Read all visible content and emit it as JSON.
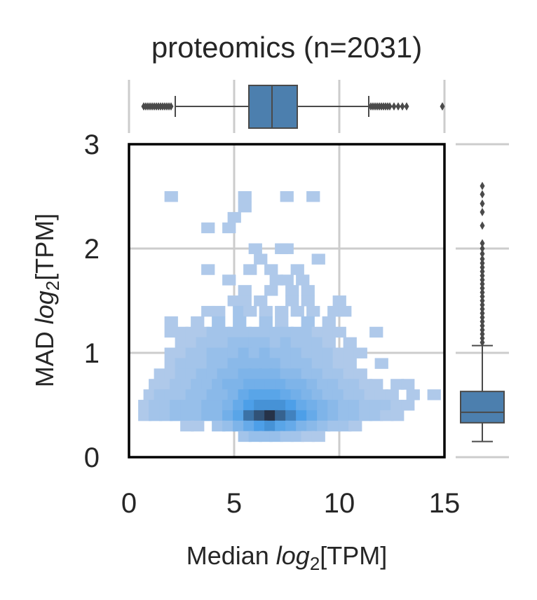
{
  "chart_data": {
    "type": "heatmap",
    "variant": "2d-histogram joint plot with marginal boxplots",
    "title": "proteomics (n=2031)",
    "xlabel": {
      "prefix": "Median ",
      "log": "log",
      "sub": "2",
      "suffix": "[TPM]"
    },
    "ylabel": {
      "prefix": "MAD ",
      "log": "log",
      "sub": "2",
      "suffix": "[TPM]"
    },
    "xlim": [
      0,
      15
    ],
    "ylim": [
      0,
      3
    ],
    "xticks": [
      "0",
      "5",
      "10",
      "15"
    ],
    "yticks": [
      "0",
      "1",
      "2",
      "3"
    ],
    "xtick_values": [
      0,
      5,
      10,
      15
    ],
    "ytick_values": [
      0,
      1,
      2,
      3
    ],
    "grid": true,
    "bin_width": {
      "x": 0.625,
      "y": 0.1
    },
    "color": "#4a90e2",
    "box_color": "#4c7fae",
    "histogram_cells": [
      [
        2.0,
        2.5,
        1
      ],
      [
        5.5,
        2.5,
        1
      ],
      [
        7.5,
        2.5,
        1
      ],
      [
        8.75,
        2.5,
        1
      ],
      [
        5.5,
        2.4,
        1
      ],
      [
        5.0,
        2.3,
        1
      ],
      [
        3.75,
        2.2,
        1
      ],
      [
        4.75,
        2.2,
        1
      ],
      [
        6.0,
        2.0,
        1
      ],
      [
        7.25,
        2.0,
        1
      ],
      [
        7.5,
        2.0,
        1
      ],
      [
        9.0,
        1.9,
        1
      ],
      [
        6.25,
        1.9,
        1
      ],
      [
        3.75,
        1.8,
        1
      ],
      [
        5.75,
        1.8,
        1
      ],
      [
        6.75,
        1.8,
        1
      ],
      [
        8.0,
        1.8,
        1
      ],
      [
        4.75,
        1.7,
        1
      ],
      [
        7.0,
        1.7,
        1
      ],
      [
        8.25,
        1.7,
        1
      ],
      [
        7.5,
        1.7,
        1
      ],
      [
        5.5,
        1.6,
        1
      ],
      [
        6.75,
        1.6,
        1
      ],
      [
        7.75,
        1.6,
        1
      ],
      [
        8.5,
        1.6,
        1
      ],
      [
        5.0,
        1.5,
        1
      ],
      [
        5.5,
        1.5,
        1
      ],
      [
        6.25,
        1.5,
        1
      ],
      [
        7.75,
        1.5,
        1
      ],
      [
        8.5,
        1.5,
        1
      ],
      [
        10.0,
        1.5,
        1
      ],
      [
        3.75,
        1.4,
        1
      ],
      [
        4.25,
        1.4,
        1
      ],
      [
        5.25,
        1.4,
        2
      ],
      [
        5.75,
        1.4,
        1
      ],
      [
        6.5,
        1.4,
        1
      ],
      [
        7.25,
        1.4,
        1
      ],
      [
        8.0,
        1.4,
        1
      ],
      [
        8.75,
        1.4,
        1
      ],
      [
        9.75,
        1.4,
        1
      ],
      [
        10.25,
        1.4,
        1
      ],
      [
        2.0,
        1.3,
        1
      ],
      [
        3.25,
        1.3,
        1
      ],
      [
        4.25,
        1.3,
        2
      ],
      [
        5.25,
        1.3,
        2
      ],
      [
        6.5,
        1.3,
        2
      ],
      [
        7.25,
        1.3,
        1
      ],
      [
        8.5,
        1.3,
        2
      ],
      [
        9.5,
        1.3,
        1
      ],
      [
        2.0,
        1.2,
        1
      ],
      [
        2.5,
        1.2,
        1
      ],
      [
        3.0,
        1.2,
        1
      ],
      [
        3.5,
        1.2,
        1
      ],
      [
        4.0,
        1.2,
        2
      ],
      [
        4.5,
        1.2,
        2
      ],
      [
        5.0,
        1.2,
        2
      ],
      [
        5.5,
        1.2,
        2
      ],
      [
        6.0,
        1.2,
        2
      ],
      [
        6.5,
        1.2,
        2
      ],
      [
        7.0,
        1.2,
        2
      ],
      [
        7.5,
        1.2,
        2
      ],
      [
        8.0,
        1.2,
        2
      ],
      [
        8.5,
        1.2,
        2
      ],
      [
        9.0,
        1.2,
        1
      ],
      [
        9.5,
        1.2,
        1
      ],
      [
        10.0,
        1.2,
        1
      ],
      [
        11.75,
        1.2,
        1
      ],
      [
        2.5,
        1.1,
        1
      ],
      [
        3.0,
        1.1,
        1
      ],
      [
        3.5,
        1.1,
        2
      ],
      [
        4.0,
        1.1,
        2
      ],
      [
        4.5,
        1.1,
        2
      ],
      [
        5.0,
        1.1,
        3
      ],
      [
        5.5,
        1.1,
        3
      ],
      [
        6.0,
        1.1,
        3
      ],
      [
        6.5,
        1.1,
        3
      ],
      [
        7.0,
        1.1,
        2
      ],
      [
        7.5,
        1.1,
        3
      ],
      [
        8.0,
        1.1,
        2
      ],
      [
        8.5,
        1.1,
        2
      ],
      [
        9.0,
        1.1,
        2
      ],
      [
        9.5,
        1.1,
        1
      ],
      [
        10.5,
        1.1,
        1
      ],
      [
        2.0,
        1.0,
        1
      ],
      [
        2.5,
        1.0,
        1
      ],
      [
        3.0,
        1.0,
        2
      ],
      [
        3.5,
        1.0,
        2
      ],
      [
        4.0,
        1.0,
        3
      ],
      [
        4.5,
        1.0,
        3
      ],
      [
        5.0,
        1.0,
        3
      ],
      [
        5.5,
        1.0,
        4
      ],
      [
        6.0,
        1.0,
        3
      ],
      [
        6.5,
        1.0,
        4
      ],
      [
        7.0,
        1.0,
        3
      ],
      [
        7.5,
        1.0,
        3
      ],
      [
        8.0,
        1.0,
        3
      ],
      [
        8.5,
        1.0,
        2
      ],
      [
        9.0,
        1.0,
        2
      ],
      [
        9.5,
        1.0,
        2
      ],
      [
        10.0,
        1.0,
        1
      ],
      [
        10.5,
        1.0,
        1
      ],
      [
        11.0,
        1.0,
        1
      ],
      [
        2.0,
        0.9,
        1
      ],
      [
        2.5,
        0.9,
        2
      ],
      [
        3.0,
        0.9,
        2
      ],
      [
        3.5,
        0.9,
        2
      ],
      [
        4.0,
        0.9,
        3
      ],
      [
        4.5,
        0.9,
        3
      ],
      [
        5.0,
        0.9,
        4
      ],
      [
        5.5,
        0.9,
        4
      ],
      [
        6.0,
        0.9,
        4
      ],
      [
        6.5,
        0.9,
        4
      ],
      [
        7.0,
        0.9,
        4
      ],
      [
        7.5,
        0.9,
        3
      ],
      [
        8.0,
        0.9,
        3
      ],
      [
        8.5,
        0.9,
        3
      ],
      [
        9.0,
        0.9,
        2
      ],
      [
        9.5,
        0.9,
        2
      ],
      [
        10.0,
        0.9,
        1
      ],
      [
        10.5,
        0.9,
        1
      ],
      [
        12.0,
        0.9,
        1
      ],
      [
        1.5,
        0.8,
        1
      ],
      [
        2.0,
        0.8,
        1
      ],
      [
        2.5,
        0.8,
        2
      ],
      [
        3.0,
        0.8,
        2
      ],
      [
        3.5,
        0.8,
        3
      ],
      [
        4.0,
        0.8,
        3
      ],
      [
        4.5,
        0.8,
        4
      ],
      [
        5.0,
        0.8,
        4
      ],
      [
        5.5,
        0.8,
        5
      ],
      [
        6.0,
        0.8,
        5
      ],
      [
        6.5,
        0.8,
        5
      ],
      [
        7.0,
        0.8,
        5
      ],
      [
        7.5,
        0.8,
        4
      ],
      [
        8.0,
        0.8,
        4
      ],
      [
        8.5,
        0.8,
        3
      ],
      [
        9.0,
        0.8,
        3
      ],
      [
        9.5,
        0.8,
        2
      ],
      [
        10.0,
        0.8,
        2
      ],
      [
        10.5,
        0.8,
        1
      ],
      [
        11.0,
        0.8,
        1
      ],
      [
        1.25,
        0.7,
        1
      ],
      [
        1.75,
        0.7,
        1
      ],
      [
        2.25,
        0.7,
        2
      ],
      [
        2.75,
        0.7,
        2
      ],
      [
        3.25,
        0.7,
        3
      ],
      [
        3.75,
        0.7,
        3
      ],
      [
        4.25,
        0.7,
        4
      ],
      [
        4.75,
        0.7,
        5
      ],
      [
        5.25,
        0.7,
        5
      ],
      [
        5.75,
        0.7,
        6
      ],
      [
        6.25,
        0.7,
        6
      ],
      [
        6.75,
        0.7,
        6
      ],
      [
        7.25,
        0.7,
        6
      ],
      [
        7.75,
        0.7,
        5
      ],
      [
        8.25,
        0.7,
        5
      ],
      [
        8.75,
        0.7,
        4
      ],
      [
        9.25,
        0.7,
        3
      ],
      [
        9.75,
        0.7,
        3
      ],
      [
        10.25,
        0.7,
        2
      ],
      [
        10.75,
        0.7,
        2
      ],
      [
        11.25,
        0.7,
        1
      ],
      [
        11.75,
        0.7,
        1
      ],
      [
        12.75,
        0.7,
        1
      ],
      [
        13.25,
        0.7,
        1
      ],
      [
        1.0,
        0.6,
        1
      ],
      [
        1.5,
        0.6,
        2
      ],
      [
        2.0,
        0.6,
        2
      ],
      [
        2.5,
        0.6,
        2
      ],
      [
        3.0,
        0.6,
        3
      ],
      [
        3.5,
        0.6,
        3
      ],
      [
        4.0,
        0.6,
        4
      ],
      [
        4.5,
        0.6,
        4
      ],
      [
        5.0,
        0.6,
        5
      ],
      [
        5.5,
        0.6,
        7
      ],
      [
        6.0,
        0.6,
        8
      ],
      [
        6.5,
        0.6,
        8
      ],
      [
        7.0,
        0.6,
        8
      ],
      [
        7.5,
        0.6,
        7
      ],
      [
        8.0,
        0.6,
        6
      ],
      [
        8.5,
        0.6,
        5
      ],
      [
        9.0,
        0.6,
        4
      ],
      [
        9.5,
        0.6,
        3
      ],
      [
        10.0,
        0.6,
        3
      ],
      [
        10.5,
        0.6,
        2
      ],
      [
        11.0,
        0.6,
        2
      ],
      [
        11.5,
        0.6,
        1
      ],
      [
        12.0,
        0.6,
        1
      ],
      [
        12.5,
        0.6,
        1
      ],
      [
        13.5,
        0.6,
        1
      ],
      [
        14.5,
        0.6,
        1
      ],
      [
        0.75,
        0.5,
        1
      ],
      [
        1.25,
        0.5,
        2
      ],
      [
        1.75,
        0.5,
        2
      ],
      [
        2.25,
        0.5,
        3
      ],
      [
        2.75,
        0.5,
        3
      ],
      [
        3.25,
        0.5,
        3
      ],
      [
        3.75,
        0.5,
        4
      ],
      [
        4.25,
        0.5,
        4
      ],
      [
        4.75,
        0.5,
        5
      ],
      [
        5.25,
        0.5,
        7
      ],
      [
        5.75,
        0.5,
        9
      ],
      [
        6.25,
        0.5,
        10
      ],
      [
        6.75,
        0.5,
        10
      ],
      [
        7.25,
        0.5,
        10
      ],
      [
        7.75,
        0.5,
        9
      ],
      [
        8.25,
        0.5,
        7
      ],
      [
        8.75,
        0.5,
        6
      ],
      [
        9.25,
        0.5,
        5
      ],
      [
        9.75,
        0.5,
        4
      ],
      [
        10.25,
        0.5,
        3
      ],
      [
        10.75,
        0.5,
        3
      ],
      [
        11.25,
        0.5,
        2
      ],
      [
        11.75,
        0.5,
        2
      ],
      [
        12.25,
        0.5,
        2
      ],
      [
        12.75,
        0.5,
        1
      ],
      [
        13.25,
        0.5,
        1
      ],
      [
        0.75,
        0.4,
        1
      ],
      [
        1.25,
        0.4,
        2
      ],
      [
        1.75,
        0.4,
        2
      ],
      [
        2.25,
        0.4,
        3
      ],
      [
        2.75,
        0.4,
        3
      ],
      [
        3.25,
        0.4,
        3
      ],
      [
        3.75,
        0.4,
        4
      ],
      [
        4.25,
        0.4,
        4
      ],
      [
        4.75,
        0.4,
        6
      ],
      [
        5.25,
        0.4,
        8
      ],
      [
        5.75,
        0.4,
        12
      ],
      [
        6.25,
        0.4,
        14
      ],
      [
        6.75,
        0.4,
        16
      ],
      [
        7.25,
        0.4,
        13
      ],
      [
        7.75,
        0.4,
        11
      ],
      [
        8.25,
        0.4,
        9
      ],
      [
        8.75,
        0.4,
        7
      ],
      [
        9.25,
        0.4,
        5
      ],
      [
        9.75,
        0.4,
        4
      ],
      [
        10.25,
        0.4,
        3
      ],
      [
        10.75,
        0.4,
        3
      ],
      [
        11.25,
        0.4,
        2
      ],
      [
        11.75,
        0.4,
        2
      ],
      [
        12.25,
        0.4,
        1
      ],
      [
        12.75,
        0.4,
        1
      ],
      [
        2.75,
        0.3,
        1
      ],
      [
        3.25,
        0.3,
        1
      ],
      [
        4.25,
        0.3,
        2
      ],
      [
        4.75,
        0.3,
        3
      ],
      [
        5.25,
        0.3,
        5
      ],
      [
        5.75,
        0.3,
        7
      ],
      [
        6.25,
        0.3,
        9
      ],
      [
        6.75,
        0.3,
        10
      ],
      [
        7.25,
        0.3,
        8
      ],
      [
        7.75,
        0.3,
        7
      ],
      [
        8.25,
        0.3,
        5
      ],
      [
        8.75,
        0.3,
        4
      ],
      [
        9.25,
        0.3,
        3
      ],
      [
        9.75,
        0.3,
        2
      ],
      [
        10.25,
        0.3,
        2
      ],
      [
        10.75,
        0.3,
        1
      ],
      [
        5.5,
        0.2,
        2
      ],
      [
        6.0,
        0.2,
        3
      ],
      [
        6.5,
        0.2,
        3
      ],
      [
        7.0,
        0.2,
        3
      ],
      [
        7.5,
        0.2,
        2
      ],
      [
        8.0,
        0.2,
        2
      ],
      [
        8.5,
        0.2,
        1
      ],
      [
        9.0,
        0.2,
        1
      ]
    ],
    "marginal_x_box": {
      "whisker_low": 2.2,
      "q1": 5.7,
      "median": 6.8,
      "q3": 8.0,
      "whisker_high": 11.4,
      "outliers": [
        0.7,
        0.8,
        0.9,
        1.0,
        1.1,
        1.2,
        1.3,
        1.4,
        1.5,
        1.6,
        1.7,
        1.8,
        1.9,
        2.0,
        11.5,
        11.6,
        11.7,
        11.8,
        11.9,
        12.0,
        12.1,
        12.2,
        12.3,
        12.4,
        12.6,
        12.8,
        13.0,
        13.2,
        14.9
      ]
    },
    "marginal_y_box": {
      "whisker_low": 0.15,
      "q1": 0.33,
      "median": 0.43,
      "q3": 0.63,
      "whisker_high": 1.07,
      "outliers": [
        1.1,
        1.14,
        1.18,
        1.22,
        1.26,
        1.3,
        1.34,
        1.38,
        1.42,
        1.46,
        1.5,
        1.54,
        1.58,
        1.62,
        1.66,
        1.7,
        1.74,
        1.78,
        1.82,
        1.86,
        1.9,
        1.95,
        2.0,
        2.05,
        2.22,
        2.35,
        2.43,
        2.52,
        2.6
      ]
    }
  }
}
